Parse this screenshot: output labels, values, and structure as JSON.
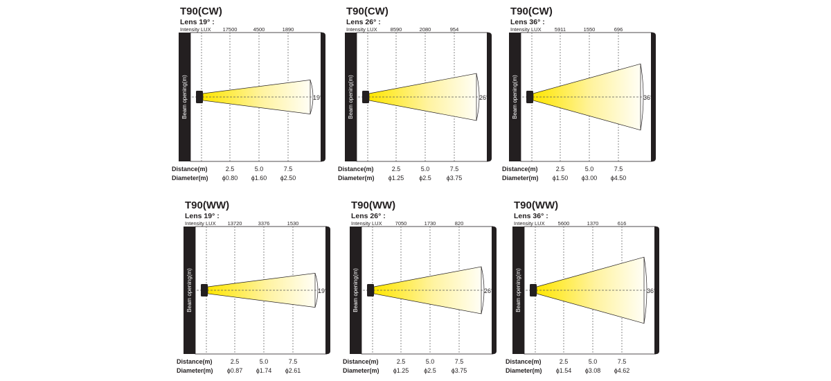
{
  "labels": {
    "intensity": "Intensity LUX",
    "axis": "Beam opening(m)",
    "distance": "Distance(m)",
    "diameter": "Diameter(m)"
  },
  "colors": {
    "beam": "#ffe600",
    "frame": "#231f20"
  },
  "panels": [
    {
      "title": "T90(CW)",
      "lens": "Lens 19° :",
      "angle_value": 19,
      "angle": "19°",
      "lux": [
        "17500",
        "4500",
        "1890"
      ],
      "distances": [
        "2.5",
        "5.0",
        "7.5"
      ],
      "diameters": [
        "ϕ0.80",
        "ϕ1.60",
        "ϕ2.50"
      ]
    },
    {
      "title": "T90(CW)",
      "lens": "Lens 26° :",
      "angle_value": 26,
      "angle": "26°",
      "lux": [
        "8590",
        "2080",
        "954"
      ],
      "distances": [
        "2.5",
        "5.0",
        "7.5"
      ],
      "diameters": [
        "ϕ1.25",
        "ϕ2.5",
        "ϕ3.75"
      ]
    },
    {
      "title": "T90(CW)",
      "lens": "Lens 36° :",
      "angle_value": 36,
      "angle": "36°",
      "lux": [
        "5911",
        "1550",
        "696"
      ],
      "distances": [
        "2.5",
        "5.0",
        "7.5"
      ],
      "diameters": [
        "ϕ1.50",
        "ϕ3.00",
        "ϕ4.50"
      ]
    },
    {
      "title": "T90(WW)",
      "lens": "Lens 19° :",
      "angle_value": 19,
      "angle": "19°",
      "lux": [
        "13720",
        "3376",
        "1530"
      ],
      "distances": [
        "2.5",
        "5.0",
        "7.5"
      ],
      "diameters": [
        "ϕ0.87",
        "ϕ1.74",
        "ϕ2.61"
      ]
    },
    {
      "title": "T90(WW)",
      "lens": "Lens 26° :",
      "angle_value": 26,
      "angle": "26°",
      "lux": [
        "7050",
        "1730",
        "820"
      ],
      "distances": [
        "2.5",
        "5.0",
        "7.5"
      ],
      "diameters": [
        "ϕ1.25",
        "ϕ2.5",
        "ϕ3.75"
      ]
    },
    {
      "title": "T90(WW)",
      "lens": "Lens 36° :",
      "angle_value": 36,
      "angle": "36°",
      "lux": [
        "5600",
        "1370",
        "616"
      ],
      "distances": [
        "2.5",
        "5.0",
        "7.5"
      ],
      "diameters": [
        "ϕ1.54",
        "ϕ3.08",
        "ϕ4.62"
      ]
    }
  ]
}
